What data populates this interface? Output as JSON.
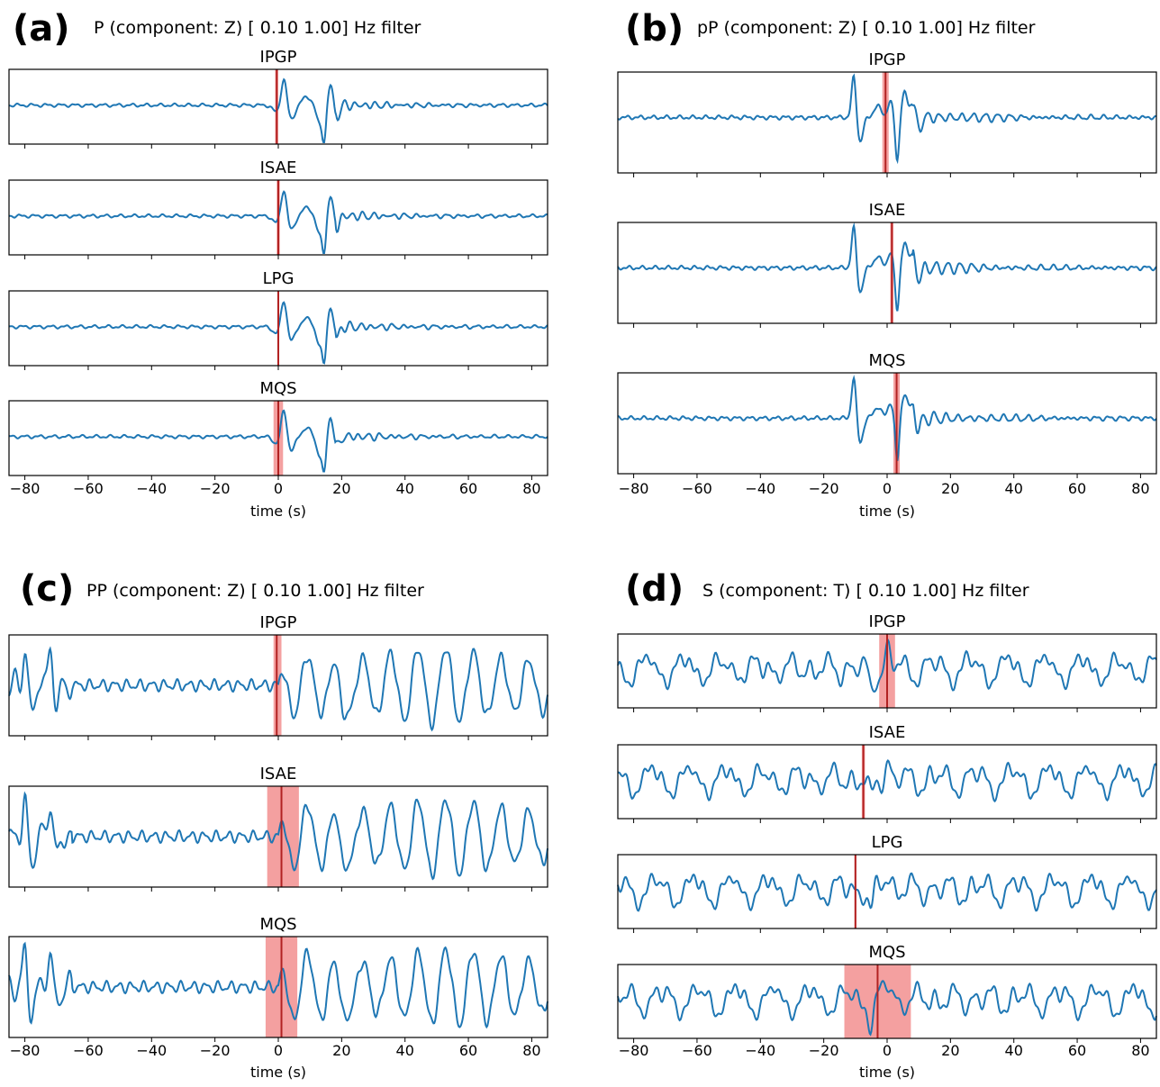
{
  "colors": {
    "trace": "#1f77b4",
    "pick": "#b22222",
    "band": "#f08080"
  },
  "chart_data": [
    {
      "panel": "(a)",
      "title": "P (component: Z) [ 0.10  1.00] Hz filter",
      "type": "line",
      "xlabel": "time (s)",
      "xlim": [
        -85,
        85
      ],
      "xticks": [
        -80,
        -60,
        -40,
        -20,
        0,
        20,
        40,
        60,
        80
      ],
      "series": [
        {
          "name": "IPGP",
          "pick": -0.5,
          "band": [
            -1.0,
            0.0
          ],
          "pattern": "P",
          "seed": 1
        },
        {
          "name": "ISAE",
          "pick": 0.0,
          "band": [
            -0.5,
            0.5
          ],
          "pattern": "P",
          "seed": 2
        },
        {
          "name": "LPG",
          "pick": 0.0,
          "band": [
            -0.3,
            0.3
          ],
          "pattern": "P",
          "seed": 3
        },
        {
          "name": "MQS",
          "pick": 0.0,
          "band": [
            -1.5,
            1.5
          ],
          "pattern": "P",
          "seed": 4
        }
      ]
    },
    {
      "panel": "(b)",
      "title": "pP (component: Z) [ 0.10  1.00] Hz filter",
      "type": "line",
      "xlabel": "time (s)",
      "xlim": [
        -85,
        85
      ],
      "xticks": [
        -80,
        -60,
        -40,
        -20,
        0,
        20,
        40,
        60,
        80
      ],
      "series": [
        {
          "name": "IPGP",
          "pick": -0.5,
          "band": [
            -1.5,
            0.5
          ],
          "pattern": "pP",
          "seed": 5
        },
        {
          "name": "ISAE",
          "pick": 1.5,
          "band": [
            1.0,
            2.0
          ],
          "pattern": "pP",
          "seed": 6
        },
        {
          "name": "MQS",
          "pick": 3.0,
          "band": [
            2.0,
            4.0
          ],
          "pattern": "pP",
          "seed": 7
        }
      ]
    },
    {
      "panel": "(c)",
      "title": "PP (component: Z) [ 0.10  1.00] Hz filter",
      "type": "line",
      "xlabel": "time (s)",
      "xlim": [
        -85,
        85
      ],
      "xticks": [
        -80,
        -60,
        -40,
        -20,
        0,
        20,
        40,
        60,
        80
      ],
      "series": [
        {
          "name": "IPGP",
          "pick": -0.5,
          "band": [
            -1.5,
            1.0
          ],
          "pattern": "PP",
          "seed": 8
        },
        {
          "name": "ISAE",
          "pick": 1.0,
          "band": [
            -3.5,
            6.5
          ],
          "pattern": "PP",
          "seed": 9
        },
        {
          "name": "MQS",
          "pick": 1.0,
          "band": [
            -4.0,
            6.0
          ],
          "pattern": "PP",
          "seed": 10
        }
      ]
    },
    {
      "panel": "(d)",
      "title": "S (component: T) [ 0.10  1.00] Hz filter",
      "type": "line",
      "xlabel": "time (s)",
      "xlim": [
        -85,
        85
      ],
      "xticks": [
        -80,
        -60,
        -40,
        -20,
        0,
        20,
        40,
        60,
        80
      ],
      "series": [
        {
          "name": "IPGP",
          "pick": 0.0,
          "band": [
            -2.5,
            2.5
          ],
          "pattern": "S",
          "seed": 11
        },
        {
          "name": "ISAE",
          "pick": -7.5,
          "band": [
            -8.0,
            -7.0
          ],
          "pattern": "S",
          "seed": 12
        },
        {
          "name": "LPG",
          "pick": -10.0,
          "band": [
            -10.3,
            -9.7
          ],
          "pattern": "S",
          "seed": 13
        },
        {
          "name": "MQS",
          "pick": -3.0,
          "band": [
            -13.5,
            7.5
          ],
          "pattern": "S",
          "seed": 14
        }
      ]
    }
  ]
}
